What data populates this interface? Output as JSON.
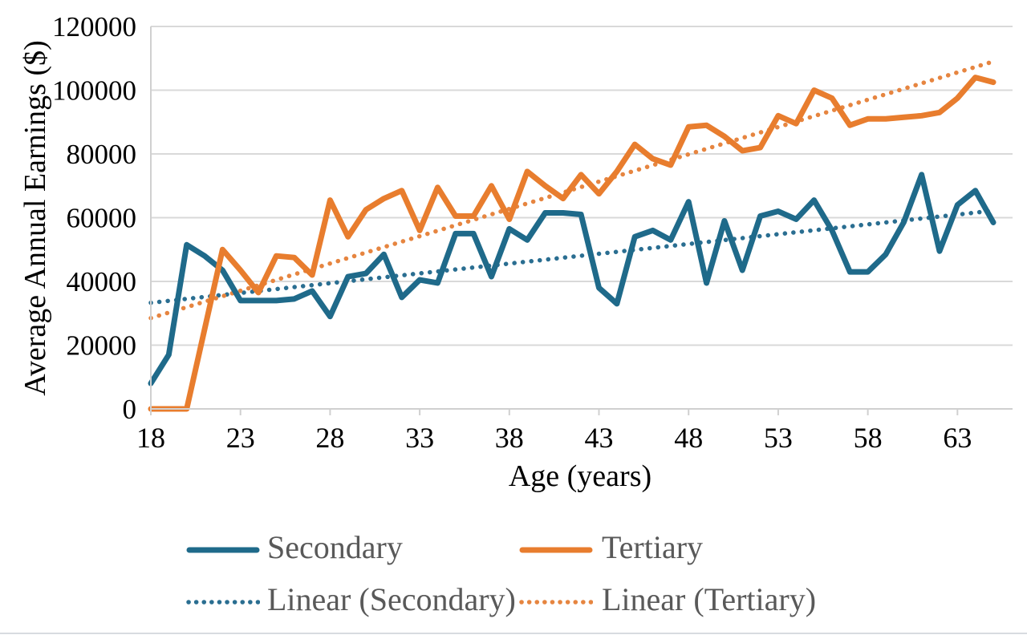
{
  "page": {
    "background": "#ffffff",
    "divider_color": "#d8dbe0"
  },
  "chart_data": {
    "type": "line",
    "title": "",
    "xlabel": "Age (years)",
    "ylabel": "Average Annual Earnings ($)",
    "xlim": [
      18,
      65
    ],
    "ylim": [
      0,
      120000
    ],
    "grid": "horizontal-only",
    "legend_position": "bottom",
    "gridline_color": "#d9d9d9",
    "axis_line_color": "#d0d0d0",
    "tick_label_color": "#000000",
    "x_ticks": [
      18,
      23,
      28,
      33,
      38,
      43,
      48,
      53,
      58,
      63
    ],
    "y_ticks": [
      0,
      20000,
      40000,
      60000,
      80000,
      100000,
      120000
    ],
    "x": [
      18,
      19,
      20,
      21,
      22,
      23,
      24,
      25,
      26,
      27,
      28,
      29,
      30,
      31,
      32,
      33,
      34,
      35,
      36,
      37,
      38,
      39,
      40,
      41,
      42,
      43,
      44,
      45,
      46,
      47,
      48,
      49,
      50,
      51,
      52,
      53,
      54,
      55,
      56,
      57,
      58,
      59,
      60,
      61,
      62,
      63,
      64,
      65
    ],
    "series": [
      {
        "name": "Secondary",
        "style": "solid",
        "color": "#1f6a8a",
        "values": [
          8000,
          17000,
          51500,
          48000,
          43500,
          34000,
          34000,
          34000,
          34500,
          37000,
          29000,
          41500,
          42500,
          48500,
          35000,
          40500,
          39500,
          55000,
          55000,
          41500,
          56500,
          53000,
          61500,
          61500,
          61000,
          38000,
          33000,
          54000,
          56000,
          53000,
          65000,
          39500,
          59000,
          43500,
          60500,
          62000,
          59500,
          65500,
          56000,
          43000,
          43000,
          48500,
          58500,
          73500,
          49500,
          64000,
          68500,
          58500
        ]
      },
      {
        "name": "Tertiary",
        "style": "solid",
        "color": "#e87d2e",
        "values": [
          0,
          0,
          0,
          25000,
          50000,
          43500,
          36500,
          48000,
          47500,
          42000,
          65500,
          54000,
          62500,
          66000,
          68500,
          56000,
          69500,
          60500,
          60500,
          70000,
          59500,
          74500,
          70000,
          66000,
          73500,
          67500,
          74500,
          83000,
          78500,
          76500,
          88500,
          89000,
          85500,
          81000,
          82000,
          92000,
          89500,
          100000,
          97500,
          89000,
          91000,
          91000,
          91500,
          92000,
          93000,
          97500,
          104000,
          102500
        ]
      },
      {
        "name": "Linear (Secondary)",
        "style": "dotted",
        "color": "#2a6e91",
        "trend": {
          "start_x": 18,
          "start_y": 33300,
          "end_x": 65,
          "end_y": 62200
        }
      },
      {
        "name": "Linear (Tertiary)",
        "style": "dotted",
        "color": "#e68540",
        "trend": {
          "start_x": 18,
          "start_y": 28500,
          "end_x": 65,
          "end_y": 109000
        }
      }
    ]
  }
}
